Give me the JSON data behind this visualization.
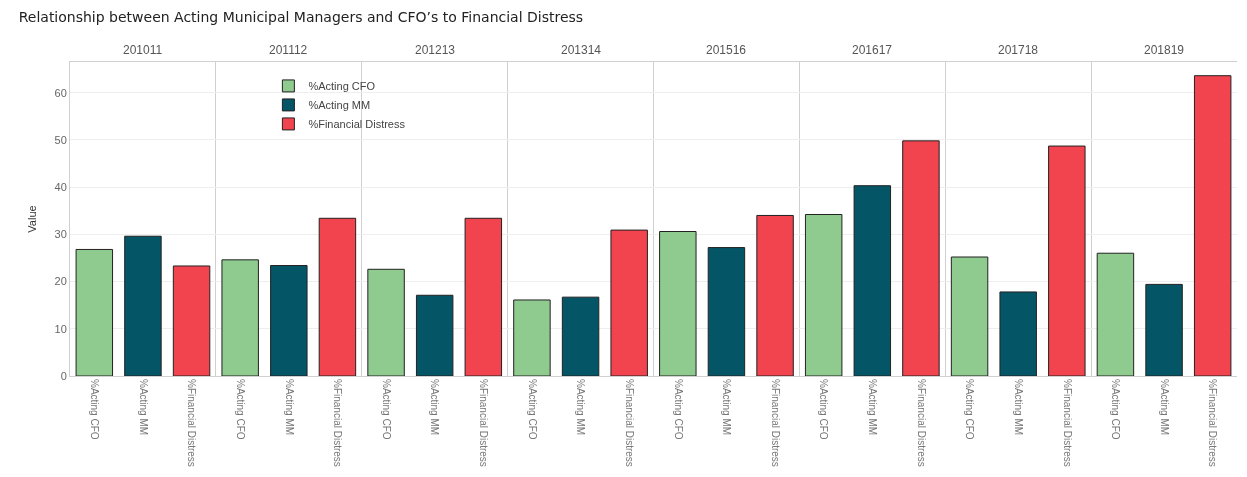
{
  "chart_data": {
    "type": "bar",
    "title": "Relationship between Acting Municipal Managers and CFO’s to Financial Distress",
    "ylabel": "Value",
    "annotations": [
      "201011",
      "201112",
      "201213",
      "201314",
      "201516",
      "201617",
      "201718",
      "201819"
    ],
    "categories": [
      "%Acting CFO",
      "%Acting MM",
      "%Financial Distress",
      "%Acting CFO",
      "%Acting MM",
      "%Financial Distress",
      "%Acting CFO",
      "%Acting MM",
      "%Financial Distress",
      "%Acting CFO",
      "%Acting MM",
      "%Financial Distress",
      "%Acting CFO",
      "%Acting MM",
      "%Financial Distress",
      "%Acting CFO",
      "%Acting MM",
      "%Financial Distress",
      "%Acting CFO",
      "%Acting MM",
      "%Financial Distress",
      "%Acting CFO",
      "%Acting MM",
      "%Financial Distress"
    ],
    "ylim": [
      0,
      66.5
    ],
    "yticks": [
      0,
      10,
      20,
      30,
      40,
      50,
      60
    ],
    "grid": "y",
    "legend": "top left",
    "series": [
      {
        "name": "%Acting CFO",
        "color": "#8fca8f",
        "values": [
          26.8,
          null,
          null,
          24.6,
          null,
          null,
          22.6,
          null,
          null,
          16.1,
          null,
          null,
          30.6,
          null,
          null,
          34.2,
          null,
          null,
          25.2,
          null,
          null,
          26.0,
          null,
          null
        ]
      },
      {
        "name": "%Acting MM",
        "color": "#045566",
        "values": [
          null,
          29.6,
          null,
          null,
          23.4,
          null,
          null,
          17.1,
          null,
          null,
          16.7,
          null,
          null,
          27.2,
          null,
          null,
          40.3,
          null,
          null,
          17.8,
          null,
          null,
          19.4,
          null
        ]
      },
      {
        "name": "%Financial Distress",
        "color": "#f2444e",
        "values": [
          null,
          null,
          23.3,
          null,
          null,
          33.4,
          null,
          null,
          33.4,
          null,
          null,
          30.9,
          null,
          null,
          34.0,
          null,
          null,
          49.8,
          null,
          null,
          48.7,
          null,
          null,
          63.6
        ]
      }
    ]
  }
}
